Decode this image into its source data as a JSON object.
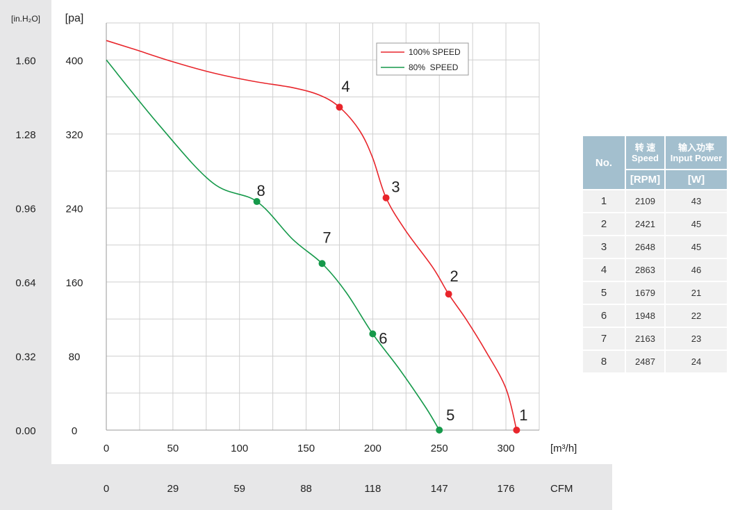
{
  "chart_data": {
    "type": "line",
    "left_axis_unit": "[in.H₂O]",
    "left_axis_ticks": [
      "0.00",
      "0.32",
      "0.64",
      "0.96",
      "1.28",
      "1.60"
    ],
    "y_axis_unit": "[pa]",
    "y_ticks": [
      0,
      80,
      160,
      240,
      320,
      400
    ],
    "ylim": [
      0,
      440
    ],
    "x_axis_unit": "[m³/h]",
    "x_ticks": [
      0,
      50,
      100,
      150,
      200,
      250,
      300
    ],
    "xlim": [
      0,
      325
    ],
    "cfm_ticks": [
      "0",
      "29",
      "59",
      "88",
      "118",
      "147",
      "176"
    ],
    "cfm_unit": "CFM",
    "grid": true,
    "legend_position": "top-right",
    "series": [
      {
        "name": "100% SPEED",
        "color": "#e8252b",
        "curve": [
          [
            0,
            421
          ],
          [
            20,
            412
          ],
          [
            50,
            398
          ],
          [
            80,
            386
          ],
          [
            110,
            377
          ],
          [
            140,
            370
          ],
          [
            160,
            362
          ],
          [
            175,
            349
          ],
          [
            190,
            324
          ],
          [
            200,
            294
          ],
          [
            210,
            251
          ],
          [
            225,
            215
          ],
          [
            245,
            176
          ],
          [
            257,
            147
          ],
          [
            270,
            120
          ],
          [
            285,
            85
          ],
          [
            300,
            45
          ],
          [
            308,
            0
          ]
        ],
        "points": [
          {
            "label": "1",
            "x": 308,
            "y": 0
          },
          {
            "label": "2",
            "x": 257,
            "y": 147
          },
          {
            "label": "3",
            "x": 210,
            "y": 251
          },
          {
            "label": "4",
            "x": 175,
            "y": 349
          }
        ]
      },
      {
        "name": "80%  SPEED",
        "color": "#15994a",
        "curve": [
          [
            0,
            400
          ],
          [
            40,
            329
          ],
          [
            80,
            267
          ],
          [
            113,
            247
          ],
          [
            140,
            206
          ],
          [
            162,
            180
          ],
          [
            180,
            149
          ],
          [
            200,
            104
          ],
          [
            220,
            66
          ],
          [
            240,
            24
          ],
          [
            250,
            0
          ]
        ],
        "points": [
          {
            "label": "5",
            "x": 250,
            "y": 0
          },
          {
            "label": "6",
            "x": 200,
            "y": 104
          },
          {
            "label": "7",
            "x": 162,
            "y": 180
          },
          {
            "label": "8",
            "x": 113,
            "y": 247
          }
        ]
      }
    ]
  },
  "table": {
    "header_no": "No.",
    "header_speed_cn": "转  速",
    "header_speed_en": "Speed",
    "header_speed_unit": "[RPM]",
    "header_power_cn": "输入功率",
    "header_power_en": "Input Power",
    "header_power_unit": "[W]",
    "rows": [
      {
        "no": "1",
        "speed": "2109",
        "power": "43"
      },
      {
        "no": "2",
        "speed": "2421",
        "power": "45"
      },
      {
        "no": "3",
        "speed": "2648",
        "power": "45"
      },
      {
        "no": "4",
        "speed": "2863",
        "power": "46"
      },
      {
        "no": "5",
        "speed": "1679",
        "power": "21"
      },
      {
        "no": "6",
        "speed": "1948",
        "power": "22"
      },
      {
        "no": "7",
        "speed": "2163",
        "power": "23"
      },
      {
        "no": "8",
        "speed": "2487",
        "power": "24"
      }
    ]
  }
}
